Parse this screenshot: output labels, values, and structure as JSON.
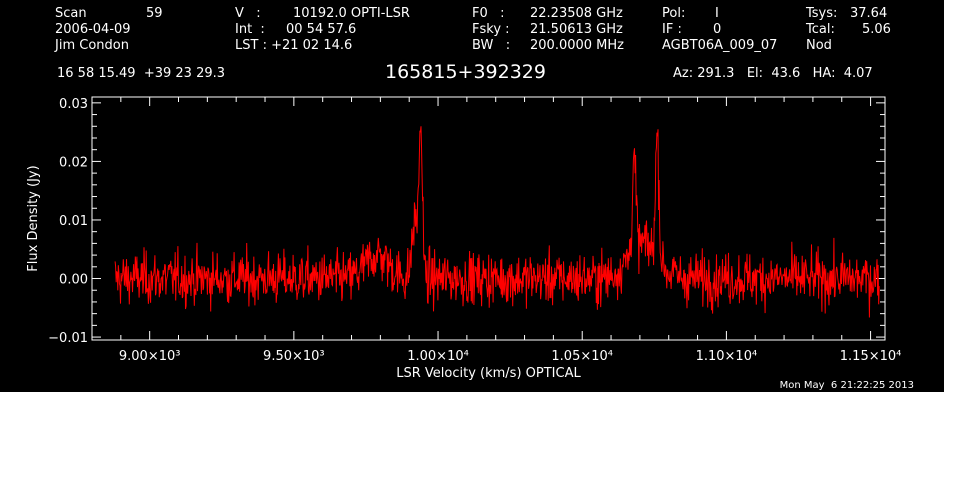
{
  "header": {
    "col1": {
      "scan_label": "Scan",
      "scan_value": "59",
      "date": "2006-04-09",
      "observer": "Jim Condon"
    },
    "col2": {
      "v_label": "V   :",
      "v_value": "10192.0 OPTI-LSR",
      "int_label": "Int  :",
      "int_value": "00 54 57.6",
      "lst_label": "LST : +21 02 14.6"
    },
    "col3": {
      "f0_label": "F0   :",
      "f0_value": "22.23508 GHz",
      "fsky_label": "Fsky :",
      "fsky_value": "21.50613 GHz",
      "bw_label": "BW   :",
      "bw_value": "200.0000 MHz"
    },
    "col4": {
      "pol_label": "Pol:",
      "pol_value": "I",
      "if_label": "IF :",
      "if_value": "0",
      "project": "AGBT06A_009_07"
    },
    "col5": {
      "tsys_label": "Tsys:",
      "tsys_value": "37.64",
      "tcal_label": "Tcal:",
      "tcal_value": "5.06",
      "mode": "Nod"
    },
    "coords": "16 58 15.49  +39 23 29.3",
    "az_el_ha": "Az: 291.3   El:  43.6   HA:  4.07"
  },
  "timestamp": "Mon May  6 21:22:25 2013",
  "colors": {
    "background": "#000000",
    "axes": "#ffffff",
    "trace": "#ff0000",
    "page": "#ffffff"
  },
  "chart_data": {
    "type": "line",
    "title": "165815+392329",
    "xlabel": "LSR Velocity (km/s) OPTICAL",
    "ylabel": "Flux Density (Jy)",
    "xlim": [
      8800,
      11550
    ],
    "ylim": [
      -0.0105,
      0.031
    ],
    "x_ticks": [
      9000,
      9500,
      10000,
      10500,
      11000,
      11500
    ],
    "x_tick_labels": [
      "9.00×10³",
      "9.50×10³",
      "1.00×10⁴",
      "1.05×10⁴",
      "1.10×10⁴",
      "1.15×10⁴"
    ],
    "y_ticks": [
      -0.01,
      0.0,
      0.01,
      0.02,
      0.03
    ],
    "y_tick_labels": [
      "−0.01",
      "0.00",
      "0.01",
      "0.02",
      "0.03"
    ],
    "series": [
      {
        "color": "#ff0000",
        "noise_rms": 0.0022,
        "x_range": [
          8880,
          11530
        ],
        "features": [
          {
            "center": 9940,
            "peak": 0.025,
            "width": 6
          },
          {
            "center": 9920,
            "peak": 0.01,
            "width": 10
          },
          {
            "center": 9790,
            "peak": 0.004,
            "width": 40
          },
          {
            "center": 10680,
            "peak": 0.016,
            "width": 6
          },
          {
            "center": 10760,
            "peak": 0.021,
            "width": 6
          },
          {
            "center": 10710,
            "peak": 0.006,
            "width": 50
          }
        ]
      }
    ]
  }
}
